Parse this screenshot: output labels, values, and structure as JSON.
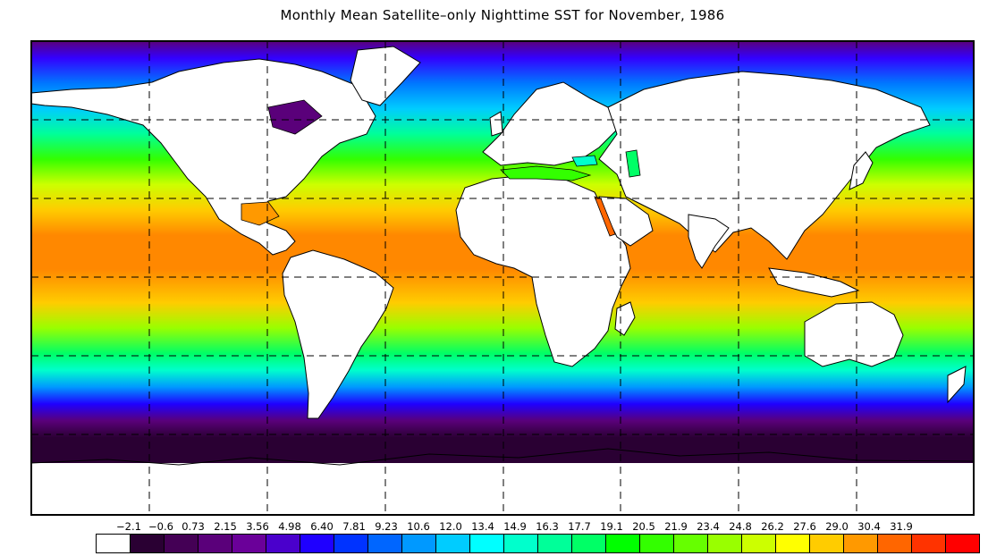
{
  "title": "Monthly Mean Satellite–only Nighttime SST for November, 1986",
  "legend": {
    "tick_labels": [
      "−2.1",
      "−0.6",
      "0.73",
      "2.15",
      "3.56",
      "4.98",
      "6.40",
      "7.81",
      "9.23",
      "10.6",
      "12.0",
      "13.4",
      "14.9",
      "16.3",
      "17.7",
      "19.1",
      "20.5",
      "21.9",
      "23.4",
      "24.8",
      "26.2",
      "27.6",
      "29.0",
      "30.4",
      "31.9"
    ],
    "colors": [
      "#ffffff",
      "#2a0033",
      "#440055",
      "#5a007a",
      "#6a0099",
      "#4a00cc",
      "#1f00ff",
      "#0033ff",
      "#0066ff",
      "#0099ff",
      "#00ccff",
      "#00ffff",
      "#00ffcc",
      "#00ff99",
      "#00ff66",
      "#00ff00",
      "#33ff00",
      "#66ff00",
      "#99ff00",
      "#ccff00",
      "#ffff00",
      "#ffcc00",
      "#ff9900",
      "#ff6600",
      "#ff3300",
      "#ff0000"
    ]
  },
  "map": {
    "gridline_style": "dashed",
    "land_color": "#ffffff",
    "outline_color": "#000000"
  }
}
